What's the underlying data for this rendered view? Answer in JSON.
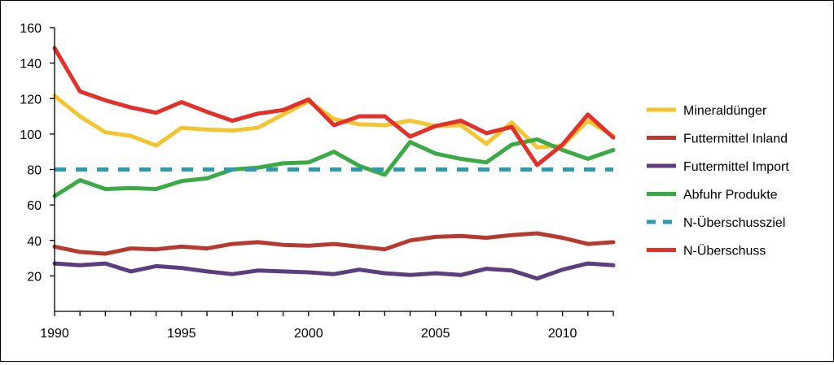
{
  "chart_data": {
    "type": "line",
    "title": "",
    "xlabel": "",
    "ylabel": "",
    "xlim": [
      1990,
      2012
    ],
    "ylim": [
      0,
      160
    ],
    "x_ticks": [
      1990,
      1995,
      2000,
      2005,
      2010
    ],
    "y_ticks": [
      20,
      40,
      60,
      80,
      100,
      120,
      140,
      160
    ],
    "grid": false,
    "legend_position": "right",
    "x": [
      1990,
      1991,
      1992,
      1993,
      1994,
      1995,
      1996,
      1997,
      1998,
      1999,
      2000,
      2001,
      2002,
      2003,
      2004,
      2005,
      2006,
      2007,
      2008,
      2009,
      2010,
      2011,
      2012
    ],
    "series": [
      {
        "name": "Mineraldünger",
        "color": "#F5C531",
        "dashed": false,
        "values": [
          121.5,
          110,
          101,
          99,
          93.5,
          103.5,
          102.5,
          102,
          103.5,
          111,
          118.5,
          108.5,
          105.5,
          105,
          107.5,
          104.5,
          105,
          94.5,
          106.5,
          92.5,
          93.5,
          107.5,
          99
        ]
      },
      {
        "name": "Futtermittel Inland",
        "color": "#B63A30",
        "dashed": false,
        "values": [
          36.5,
          33.5,
          32.5,
          35.5,
          35,
          36.5,
          35.5,
          38,
          39,
          37.5,
          37,
          38,
          36.5,
          35,
          40,
          42,
          42.5,
          41.5,
          43,
          44,
          41.5,
          38,
          39
        ]
      },
      {
        "name": "Futtermittel Import",
        "color": "#5B3D80",
        "dashed": false,
        "values": [
          27,
          26,
          27,
          22.5,
          25.5,
          24.5,
          22.5,
          21,
          23,
          22.5,
          22,
          21,
          23.5,
          21.5,
          20.5,
          21.5,
          20.5,
          24,
          23,
          18.5,
          23.5,
          27,
          26
        ]
      },
      {
        "name": "Abfuhr Produkte",
        "color": "#3AAA45",
        "dashed": false,
        "values": [
          65,
          74,
          69,
          69.5,
          69,
          73.5,
          75,
          80,
          81,
          83.5,
          84,
          90,
          82,
          77,
          95.5,
          89,
          86,
          84,
          94,
          97,
          91,
          86,
          91
        ]
      },
      {
        "name": "N-Überschussziel",
        "color": "#2E9AAE",
        "dashed": true,
        "values": [
          80,
          80,
          80,
          80,
          80,
          80,
          80,
          80,
          80,
          80,
          80,
          80,
          80,
          80,
          80,
          80,
          80,
          80,
          80,
          80,
          80,
          80,
          80
        ]
      },
      {
        "name": "N-Überschuss",
        "color": "#E3302A",
        "dashed": false,
        "values": [
          148.5,
          124,
          119,
          115,
          112,
          118,
          112.5,
          107.5,
          111.5,
          113.5,
          119.5,
          105,
          110,
          110,
          98.5,
          104.5,
          107.5,
          100.5,
          104,
          82.5,
          94,
          111,
          98
        ]
      }
    ]
  }
}
